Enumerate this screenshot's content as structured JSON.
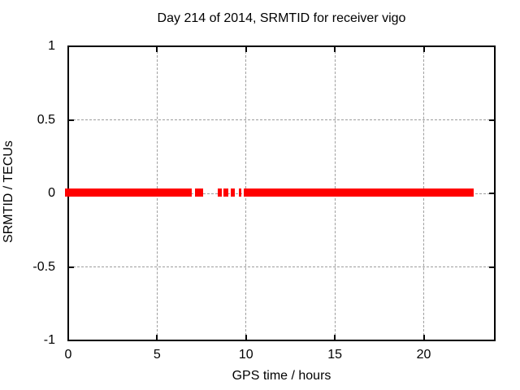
{
  "chart_data": {
    "type": "scatter",
    "title": "Day 214 of 2014, SRMTID for receiver vigo",
    "xlabel": "GPS time / hours",
    "ylabel": "SRMTID / TECUs",
    "xlim": [
      0,
      24
    ],
    "ylim": [
      -1,
      1
    ],
    "xtick_values": [
      0,
      5,
      10,
      15,
      20
    ],
    "xtick_labels": [
      "0",
      "5",
      "10",
      "15",
      "20"
    ],
    "ytick_values": [
      1,
      0.5,
      0,
      -0.5,
      -1
    ],
    "ytick_labels": [
      "1",
      "0.5",
      "0",
      "-0.5",
      "-1"
    ],
    "grid": true,
    "grid_style": "dashed",
    "legend": "none",
    "series": [
      {
        "name": "SRMTID",
        "marker": "filled-square",
        "color": "#ff0000",
        "y_value": 0,
        "hour_segments": [
          [
            0.0,
            6.93
          ],
          [
            7.11,
            7.61
          ],
          [
            8.41,
            8.62
          ],
          [
            8.73,
            9.01
          ],
          [
            9.14,
            9.39
          ],
          [
            9.58,
            9.74
          ],
          [
            9.87,
            22.81
          ]
        ]
      }
    ],
    "colors": {
      "data": "#ff0000",
      "grid": "#9e9e9e",
      "text": "#000000",
      "background": "#ffffff",
      "border": "#000000"
    }
  }
}
